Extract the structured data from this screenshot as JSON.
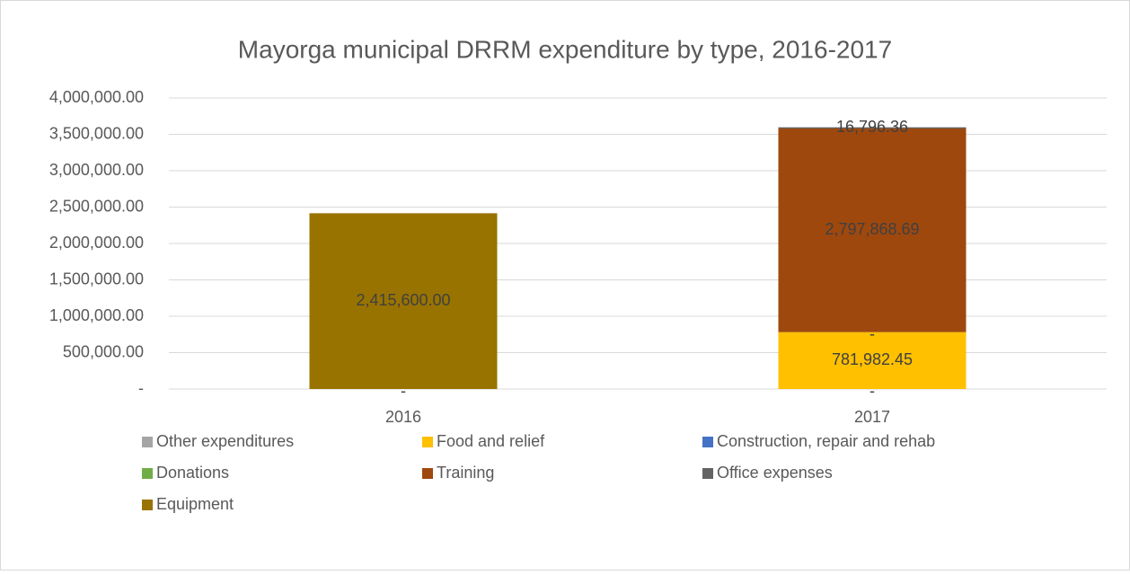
{
  "chart_data": {
    "type": "bar",
    "stacked": true,
    "title": "Mayorga municipal DRRM expenditure by type, 2016-2017",
    "categories": [
      "2016",
      "2017"
    ],
    "series": [
      {
        "name": "Other expenditures",
        "color": "#a5a5a5",
        "values": [
          0,
          0
        ],
        "value_labels": [
          "-",
          "-"
        ]
      },
      {
        "name": "Food and relief",
        "color": "#ffc000",
        "values": [
          null,
          781982.45
        ],
        "value_labels": [
          null,
          "781,982.45"
        ]
      },
      {
        "name": "Construction, repair and rehab",
        "color": "#4472c4",
        "values": [
          null,
          0
        ],
        "value_labels": [
          null,
          "-"
        ]
      },
      {
        "name": "Donations",
        "color": "#70ad47",
        "values": [
          null,
          null
        ]
      },
      {
        "name": "Training",
        "color": "#9e480e",
        "values": [
          null,
          2797868.69
        ],
        "value_labels": [
          null,
          "2,797,868.69"
        ]
      },
      {
        "name": "Office expenses",
        "color": "#636363",
        "values": [
          null,
          16796.36
        ],
        "value_labels": [
          null,
          "16,796.36"
        ]
      },
      {
        "name": "Equipment",
        "color": "#997300",
        "values": [
          2415600,
          null
        ],
        "value_labels": [
          "2,415,600.00",
          null
        ]
      }
    ],
    "ylim": [
      0,
      4000000
    ],
    "yticks": [
      {
        "value": 0,
        "label": "-"
      },
      {
        "value": 500000,
        "label": "500,000.00"
      },
      {
        "value": 1000000,
        "label": "1,000,000.00"
      },
      {
        "value": 1500000,
        "label": "1,500,000.00"
      },
      {
        "value": 2000000,
        "label": "2,000,000.00"
      },
      {
        "value": 2500000,
        "label": "2,500,000.00"
      },
      {
        "value": 3000000,
        "label": "3,000,000.00"
      },
      {
        "value": 3500000,
        "label": "3,500,000.00"
      },
      {
        "value": 4000000,
        "label": "4,000,000.00"
      }
    ],
    "grid": true,
    "legend": "bottom"
  }
}
